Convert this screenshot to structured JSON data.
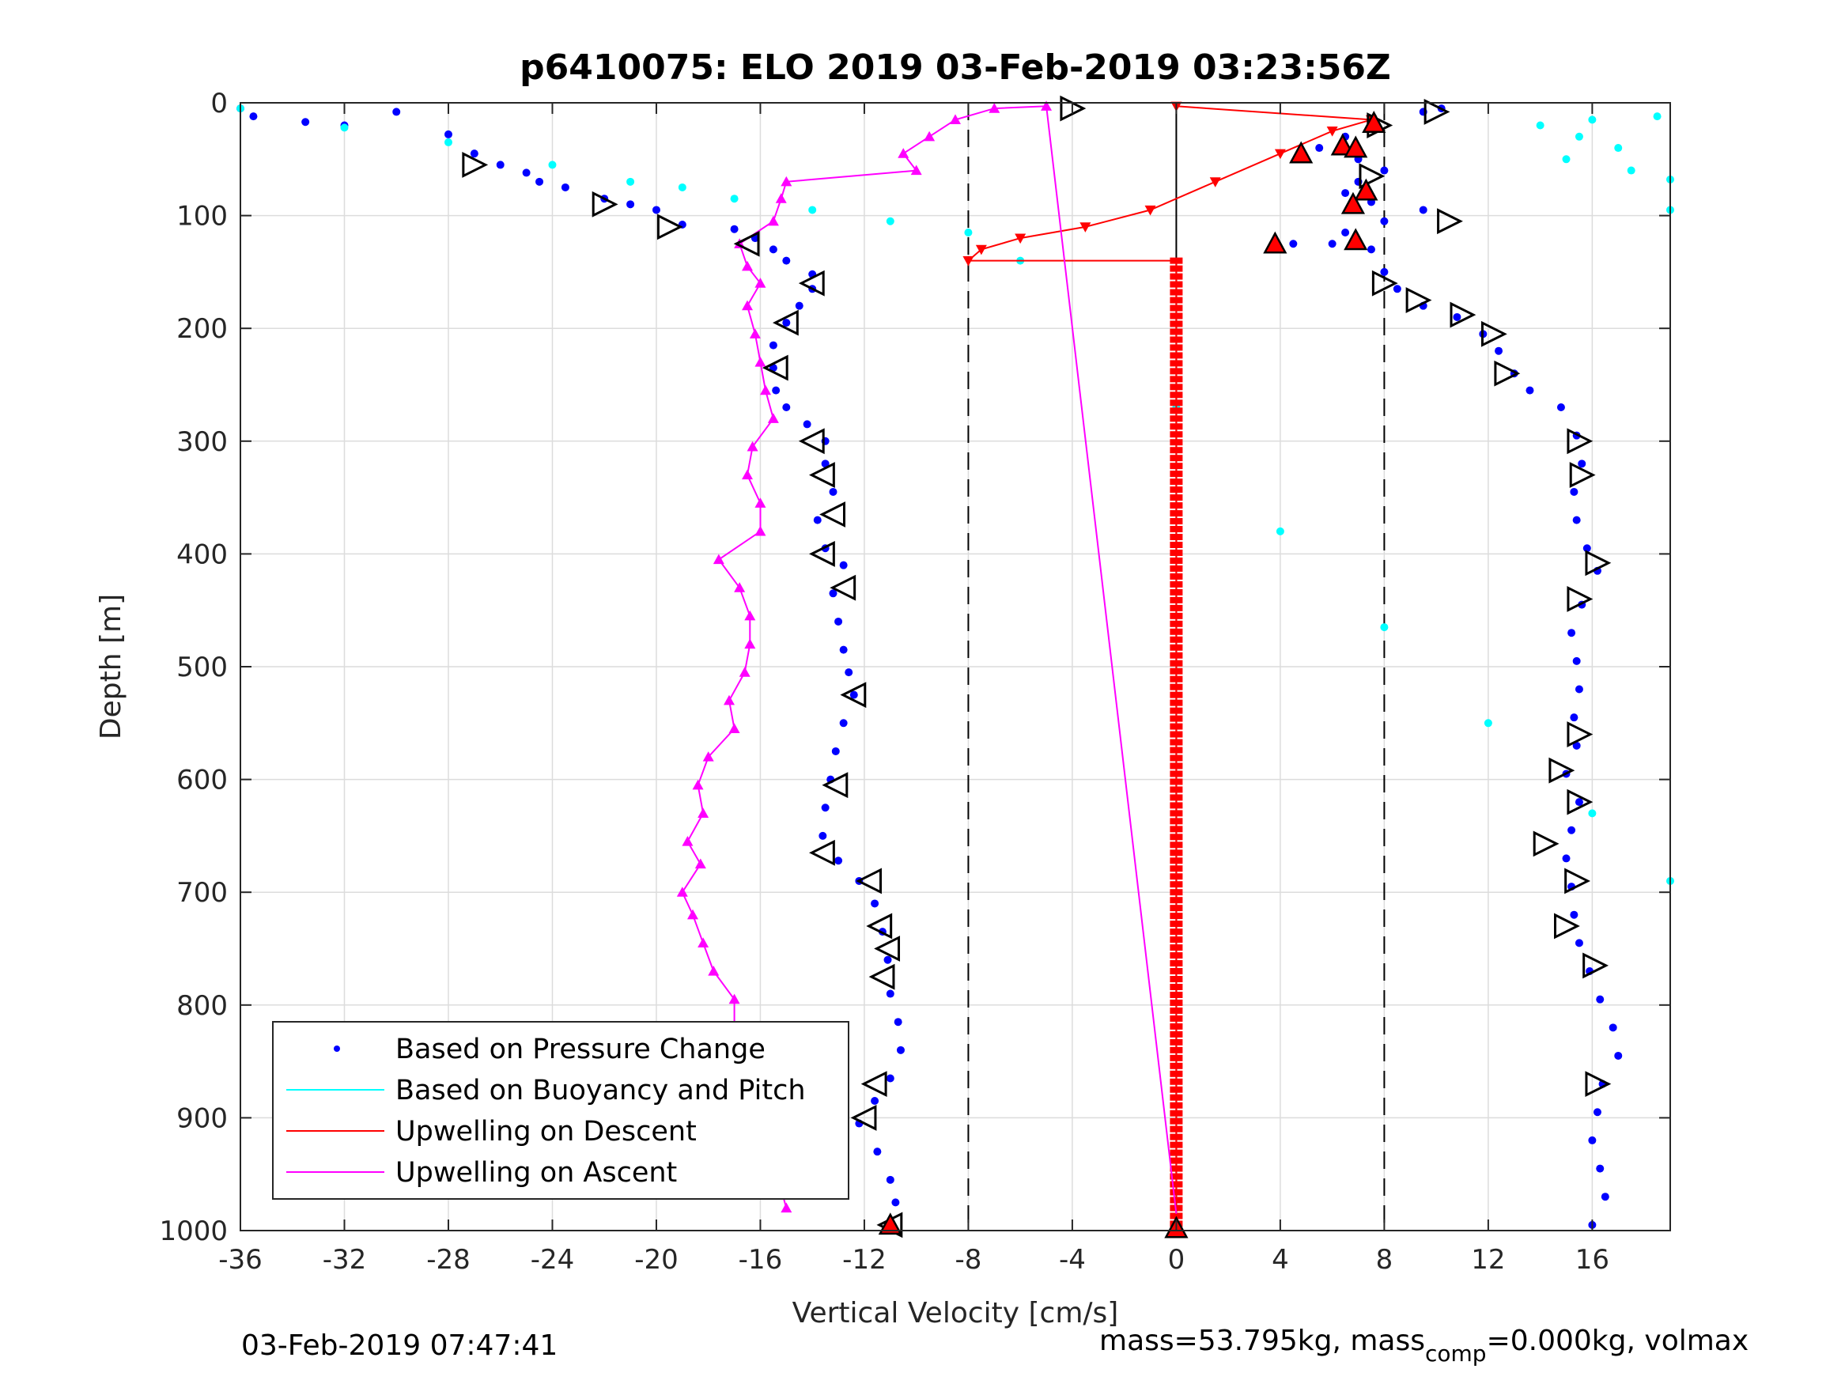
{
  "chart_data": {
    "type": "scatter",
    "title": "p6410075: ELO 2019 03-Feb-2019 03:23:56Z",
    "xlabel": "Vertical Velocity [cm/s]",
    "ylabel": "Depth [m]",
    "xlim": [
      -36,
      19
    ],
    "ylim": [
      1000,
      0
    ],
    "y_reversed": true,
    "grid": true,
    "xticks": [
      "-36",
      "-32",
      "-28",
      "-24",
      "-20",
      "-16",
      "-12",
      "-8",
      "-4",
      "0",
      "4",
      "8",
      "12",
      "16"
    ],
    "yticks": [
      "0",
      "100",
      "200",
      "300",
      "400",
      "500",
      "600",
      "700",
      "800",
      "900",
      "1000"
    ],
    "dashed_reference_lines": [
      -8,
      0,
      8
    ],
    "legend": {
      "placement": "bottom-left",
      "entries": [
        {
          "label": "Based on Pressure Change",
          "color": "#0000ff",
          "style": "dot"
        },
        {
          "label": "Based on Buoyancy and Pitch",
          "color": "#00ffff",
          "style": "line"
        },
        {
          "label": "Upwelling on Descent",
          "color": "#ff0000",
          "style": "line"
        },
        {
          "label": "Upwelling on Ascent",
          "color": "#ff00ff",
          "style": "line"
        }
      ]
    },
    "series": [
      {
        "name": "Based on Pressure Change (descent)",
        "color": "#0000ff",
        "points": [
          [
            -36,
            5
          ],
          [
            -35.5,
            12
          ],
          [
            -33.5,
            17
          ],
          [
            -32,
            20
          ],
          [
            -30,
            8
          ],
          [
            -28,
            28
          ],
          [
            -27,
            45
          ],
          [
            -26,
            55
          ],
          [
            -25,
            62
          ],
          [
            -24.5,
            70
          ],
          [
            -23.5,
            75
          ],
          [
            -22,
            85
          ],
          [
            -21,
            90
          ],
          [
            -20,
            95
          ],
          [
            -19,
            108
          ],
          [
            -17,
            112
          ],
          [
            -16.2,
            120
          ],
          [
            -15.5,
            130
          ],
          [
            -15,
            140
          ],
          [
            -14,
            152
          ],
          [
            -14,
            165
          ],
          [
            -14.5,
            180
          ],
          [
            -15,
            195
          ],
          [
            -15.5,
            215
          ],
          [
            -15.5,
            235
          ],
          [
            -15.4,
            255
          ],
          [
            -15,
            270
          ],
          [
            -14.2,
            285
          ],
          [
            -13.5,
            300
          ],
          [
            -13.5,
            320
          ],
          [
            -13.2,
            345
          ],
          [
            -13.8,
            370
          ],
          [
            -13.5,
            395
          ],
          [
            -12.8,
            410
          ],
          [
            -13.2,
            435
          ],
          [
            -13,
            460
          ],
          [
            -12.8,
            485
          ],
          [
            -12.6,
            505
          ],
          [
            -12.4,
            525
          ],
          [
            -12.8,
            550
          ],
          [
            -13.1,
            575
          ],
          [
            -13.3,
            600
          ],
          [
            -13.5,
            625
          ],
          [
            -13.6,
            650
          ],
          [
            -13,
            672
          ],
          [
            -12.2,
            690
          ],
          [
            -11.6,
            710
          ],
          [
            -11.3,
            735
          ],
          [
            -11.1,
            760
          ],
          [
            -11,
            790
          ],
          [
            -10.7,
            815
          ],
          [
            -10.6,
            840
          ],
          [
            -11,
            865
          ],
          [
            -11.6,
            885
          ],
          [
            -12.2,
            905
          ],
          [
            -11.5,
            930
          ],
          [
            -11,
            955
          ],
          [
            -10.8,
            975
          ],
          [
            -11,
            995
          ]
        ]
      },
      {
        "name": "Based on Pressure Change (ascent)",
        "color": "#0000ff",
        "points": [
          [
            16,
            995
          ],
          [
            16.5,
            970
          ],
          [
            16.3,
            945
          ],
          [
            16,
            920
          ],
          [
            16.2,
            895
          ],
          [
            16.4,
            870
          ],
          [
            17,
            845
          ],
          [
            16.8,
            820
          ],
          [
            16.3,
            795
          ],
          [
            15.9,
            770
          ],
          [
            15.5,
            745
          ],
          [
            15.3,
            720
          ],
          [
            15.2,
            695
          ],
          [
            15,
            670
          ],
          [
            15.2,
            645
          ],
          [
            15.5,
            620
          ],
          [
            15,
            595
          ],
          [
            15.4,
            570
          ],
          [
            15.3,
            545
          ],
          [
            15.5,
            520
          ],
          [
            15.4,
            495
          ],
          [
            15.2,
            470
          ],
          [
            15.6,
            445
          ],
          [
            16.2,
            415
          ],
          [
            15.8,
            395
          ],
          [
            15.4,
            370
          ],
          [
            15.3,
            345
          ],
          [
            15.6,
            320
          ],
          [
            15.4,
            295
          ],
          [
            14.8,
            270
          ],
          [
            13.6,
            255
          ],
          [
            13,
            240
          ],
          [
            12.4,
            220
          ],
          [
            11.8,
            205
          ],
          [
            10.8,
            190
          ],
          [
            9.5,
            180
          ],
          [
            8.5,
            165
          ],
          [
            8,
            150
          ],
          [
            7.5,
            130
          ],
          [
            6,
            125
          ],
          [
            4.5,
            125
          ],
          [
            6.5,
            115
          ],
          [
            8,
            105
          ],
          [
            9.5,
            95
          ],
          [
            7.5,
            88
          ],
          [
            6.5,
            80
          ],
          [
            7,
            70
          ],
          [
            8,
            60
          ],
          [
            7,
            50
          ],
          [
            5.5,
            40
          ],
          [
            6.5,
            30
          ],
          [
            7.5,
            20
          ],
          [
            9.5,
            8
          ],
          [
            10.2,
            5
          ]
        ]
      },
      {
        "name": "Based on Buoyancy and Pitch",
        "color": "#00ffff",
        "points": [
          [
            -36,
            5
          ],
          [
            -32,
            22
          ],
          [
            -28,
            35
          ],
          [
            -24,
            55
          ],
          [
            -21,
            70
          ],
          [
            -19,
            75
          ],
          [
            -17,
            85
          ],
          [
            -14,
            95
          ],
          [
            -11,
            105
          ],
          [
            -8,
            115
          ],
          [
            -6,
            140
          ],
          [
            0,
            270
          ],
          [
            4,
            380
          ],
          [
            8,
            465
          ],
          [
            12,
            550
          ],
          [
            16,
            630
          ],
          [
            19,
            690
          ]
        ]
      },
      {
        "name": "Based on Buoyancy and Pitch (surface)",
        "color": "#00ffff",
        "points": [
          [
            14,
            20
          ],
          [
            15.5,
            30
          ],
          [
            17,
            40
          ],
          [
            15,
            50
          ],
          [
            17.5,
            60
          ],
          [
            19,
            68
          ],
          [
            16,
            15
          ],
          [
            18.5,
            12
          ],
          [
            19,
            95
          ]
        ]
      },
      {
        "name": "Upwelling on Descent",
        "color": "#ff0000",
        "points": [
          [
            0,
            3
          ],
          [
            7.5,
            15
          ],
          [
            6,
            25
          ],
          [
            4,
            45
          ],
          [
            1.5,
            70
          ],
          [
            -1,
            95
          ],
          [
            -3.5,
            110
          ],
          [
            -6,
            120
          ],
          [
            -7.5,
            130
          ],
          [
            -8,
            140
          ],
          [
            0,
            140
          ],
          [
            0,
            1000
          ]
        ]
      },
      {
        "name": "Upwelling on Ascent",
        "color": "#ff00ff",
        "points": [
          [
            -15,
            980
          ],
          [
            -15.3,
            955
          ],
          [
            -15.6,
            930
          ],
          [
            -16.5,
            905
          ],
          [
            -17.2,
            880
          ],
          [
            -17.5,
            850
          ],
          [
            -17,
            820
          ],
          [
            -17,
            795
          ],
          [
            -17.8,
            770
          ],
          [
            -18.2,
            745
          ],
          [
            -18.6,
            720
          ],
          [
            -19,
            700
          ],
          [
            -18.3,
            675
          ],
          [
            -18.8,
            655
          ],
          [
            -18.2,
            630
          ],
          [
            -18.4,
            605
          ],
          [
            -18,
            580
          ],
          [
            -17,
            555
          ],
          [
            -17.2,
            530
          ],
          [
            -16.6,
            505
          ],
          [
            -16.4,
            480
          ],
          [
            -16.4,
            455
          ],
          [
            -16.8,
            430
          ],
          [
            -17.6,
            405
          ],
          [
            -16,
            380
          ],
          [
            -16,
            355
          ],
          [
            -16.5,
            330
          ],
          [
            -16.3,
            305
          ],
          [
            -15.5,
            280
          ],
          [
            -15.8,
            255
          ],
          [
            -16,
            230
          ],
          [
            -16.2,
            205
          ],
          [
            -16.5,
            180
          ],
          [
            -16,
            160
          ],
          [
            -16.5,
            145
          ],
          [
            -16.8,
            125
          ],
          [
            -15.5,
            105
          ],
          [
            -15.2,
            85
          ],
          [
            -15,
            70
          ],
          [
            -10,
            60
          ],
          [
            -10.5,
            45
          ],
          [
            -9.5,
            30
          ],
          [
            -8.5,
            15
          ],
          [
            -7,
            5
          ],
          [
            -5,
            3
          ],
          [
            0,
            985
          ]
        ]
      }
    ],
    "annotations_ascent_markers": [
      [
        -16.5,
        125
      ],
      [
        -14,
        160
      ],
      [
        -15,
        195
      ],
      [
        -15.4,
        235
      ],
      [
        -14,
        300
      ],
      [
        -13.6,
        330
      ],
      [
        -13.2,
        365
      ],
      [
        -13.6,
        400
      ],
      [
        -12.8,
        430
      ],
      [
        -12.4,
        525
      ],
      [
        -13.1,
        605
      ],
      [
        -13.6,
        665
      ],
      [
        -11.8,
        690
      ],
      [
        -11.4,
        730
      ],
      [
        -11.1,
        750
      ],
      [
        -11.3,
        775
      ],
      [
        -11.6,
        870
      ],
      [
        -12,
        900
      ],
      [
        -11,
        995
      ]
    ],
    "annotations_descent_markers": [
      [
        -27,
        55
      ],
      [
        -22,
        90
      ],
      [
        -19.5,
        110
      ],
      [
        -4,
        5
      ],
      [
        10,
        8
      ],
      [
        7.8,
        20
      ],
      [
        7.5,
        65
      ],
      [
        10.5,
        105
      ],
      [
        8,
        160
      ],
      [
        9.3,
        175
      ],
      [
        11,
        188
      ],
      [
        12.2,
        205
      ],
      [
        12.7,
        240
      ],
      [
        15.5,
        300
      ],
      [
        15.6,
        330
      ],
      [
        16.2,
        408
      ],
      [
        15.5,
        440
      ],
      [
        15.5,
        560
      ],
      [
        14.8,
        592
      ],
      [
        15.5,
        620
      ],
      [
        14.2,
        657
      ],
      [
        15.4,
        690
      ],
      [
        15,
        730
      ],
      [
        16.1,
        765
      ],
      [
        16.2,
        870
      ]
    ],
    "red_triangle_markers": [
      [
        4.8,
        45
      ],
      [
        6.4,
        38
      ],
      [
        6.9,
        40
      ],
      [
        7.6,
        18
      ],
      [
        7.3,
        78
      ],
      [
        6.8,
        90
      ],
      [
        6.9,
        122
      ],
      [
        3.8,
        125
      ],
      [
        -11,
        995
      ],
      [
        0,
        998
      ]
    ]
  },
  "footer": {
    "timestamp": "03-Feb-2019 07:47:41",
    "mass_text_a": "mass=53.795kg, mass",
    "mass_sub": "comp",
    "mass_text_b": "=0.000kg, volmax"
  }
}
